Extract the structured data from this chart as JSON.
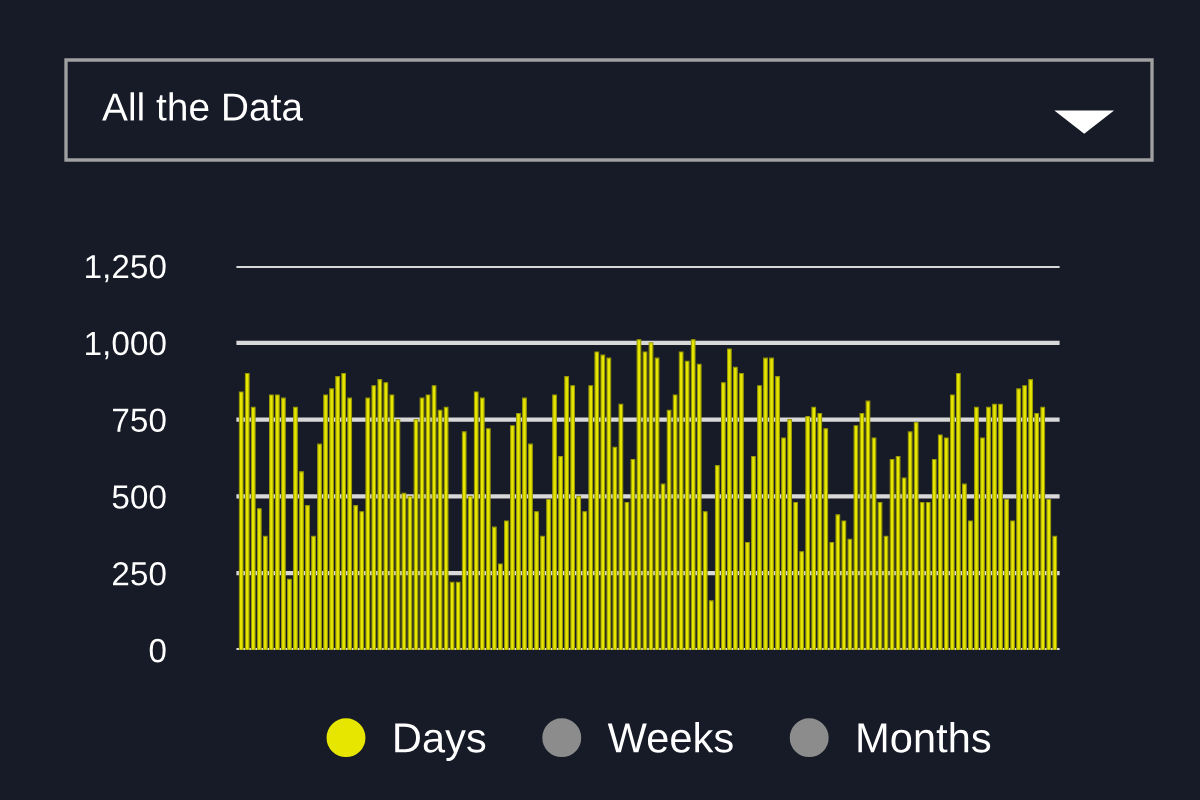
{
  "chart_data": {
    "type": "bar",
    "annotations": [
      "All the Data",
      "Weeks",
      "Months"
    ],
    "categories": [
      null,
      null,
      null,
      null,
      null,
      null,
      null,
      null,
      null,
      null,
      null,
      null,
      null,
      null,
      null,
      null,
      null,
      null,
      null,
      null,
      null,
      null,
      null,
      null,
      null,
      null,
      null,
      null,
      null,
      null,
      null,
      null,
      null,
      null,
      null,
      null,
      null,
      null,
      null,
      null,
      null,
      null,
      null,
      null,
      null,
      null,
      null,
      null,
      null,
      null,
      null,
      null,
      null,
      null,
      null,
      null,
      null,
      null,
      null,
      null,
      null,
      null,
      null,
      null,
      null,
      null,
      null,
      null,
      null,
      null,
      null,
      null,
      null,
      null,
      null,
      null,
      null,
      null,
      null,
      null,
      null,
      null,
      null,
      null,
      null,
      null,
      null,
      null,
      null,
      null,
      null,
      null,
      null,
      null,
      null,
      null,
      null,
      null,
      null,
      null,
      null,
      null,
      null,
      null,
      null,
      null,
      null,
      null,
      null,
      null,
      null,
      null,
      null,
      null,
      null,
      null,
      null,
      null,
      null,
      null,
      null,
      null,
      null,
      null,
      null,
      null,
      null,
      null,
      null,
      null,
      null,
      null,
      null,
      null,
      null,
      null
    ],
    "series": [
      {
        "name": "Days",
        "color": "#e6e600",
        "values": [
          840,
          900,
          790,
          460,
          370,
          830,
          830,
          820,
          230,
          790,
          580,
          470,
          370,
          670,
          830,
          850,
          890,
          900,
          820,
          470,
          450,
          820,
          860,
          880,
          870,
          830,
          750,
          510,
          500,
          750,
          820,
          830,
          860,
          780,
          790,
          220,
          220,
          710,
          500,
          840,
          820,
          720,
          400,
          280,
          420,
          730,
          770,
          820,
          670,
          450,
          370,
          490,
          830,
          630,
          890,
          860,
          500,
          450,
          860,
          970,
          960,
          950,
          660,
          800,
          480,
          620,
          1010,
          970,
          1000,
          950,
          540,
          780,
          830,
          970,
          940,
          1010,
          930,
          450,
          160,
          600,
          870,
          980,
          920,
          900,
          350,
          630,
          860,
          950,
          950,
          890,
          690,
          750,
          480,
          320,
          760,
          790,
          770,
          720,
          350,
          440,
          420,
          360,
          730,
          770,
          810,
          690,
          480,
          370,
          620,
          630,
          560,
          710,
          740,
          480,
          480,
          620,
          700,
          690,
          830,
          900,
          540,
          420,
          790,
          690,
          790,
          800,
          800,
          490,
          420,
          850,
          860,
          880,
          770,
          790,
          490,
          370
        ]
      }
    ],
    "ylim": [
      0,
      1250
    ],
    "yticks": [
      0,
      250,
      500,
      750,
      {
        "value": 1000,
        "label": "1,000"
      },
      {
        "value": 1250,
        "label": "1,250"
      }
    ],
    "grid": "y",
    "legend": "bottom"
  }
}
